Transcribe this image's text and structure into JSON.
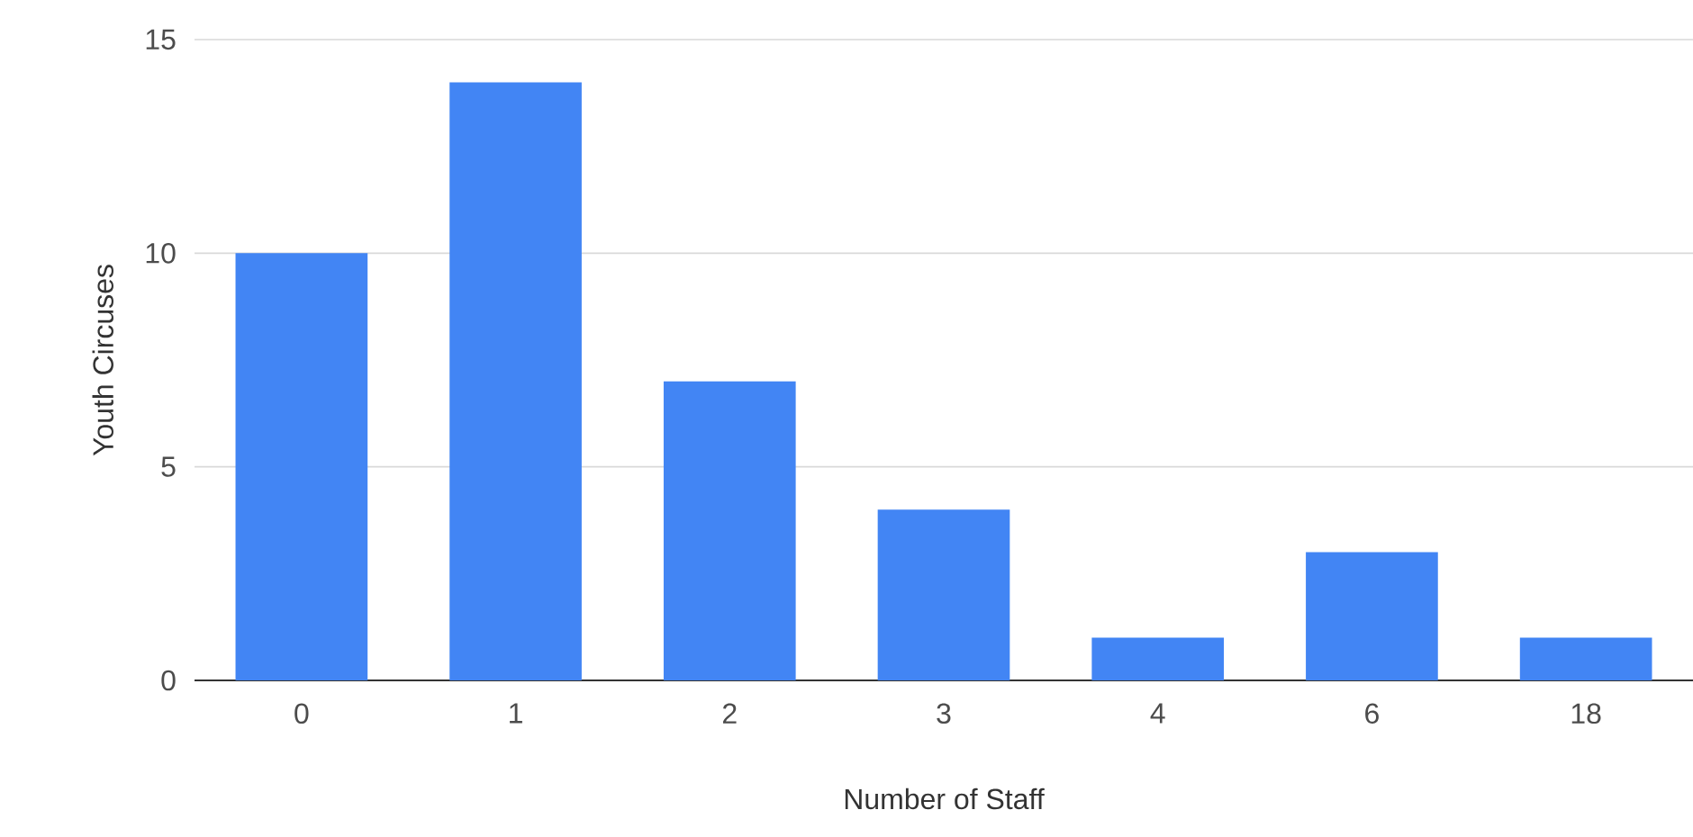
{
  "chart_data": {
    "type": "bar",
    "xlabel": "Number of Staff",
    "ylabel": "Youth Circuses",
    "categories": [
      "0",
      "1",
      "2",
      "3",
      "4",
      "6",
      "18"
    ],
    "values": [
      10,
      14,
      7,
      4,
      1,
      3,
      1
    ],
    "color": "#4285f4",
    "ylim": [
      0,
      15
    ],
    "yticks": [
      0,
      5,
      10,
      15
    ],
    "grid": "y"
  }
}
